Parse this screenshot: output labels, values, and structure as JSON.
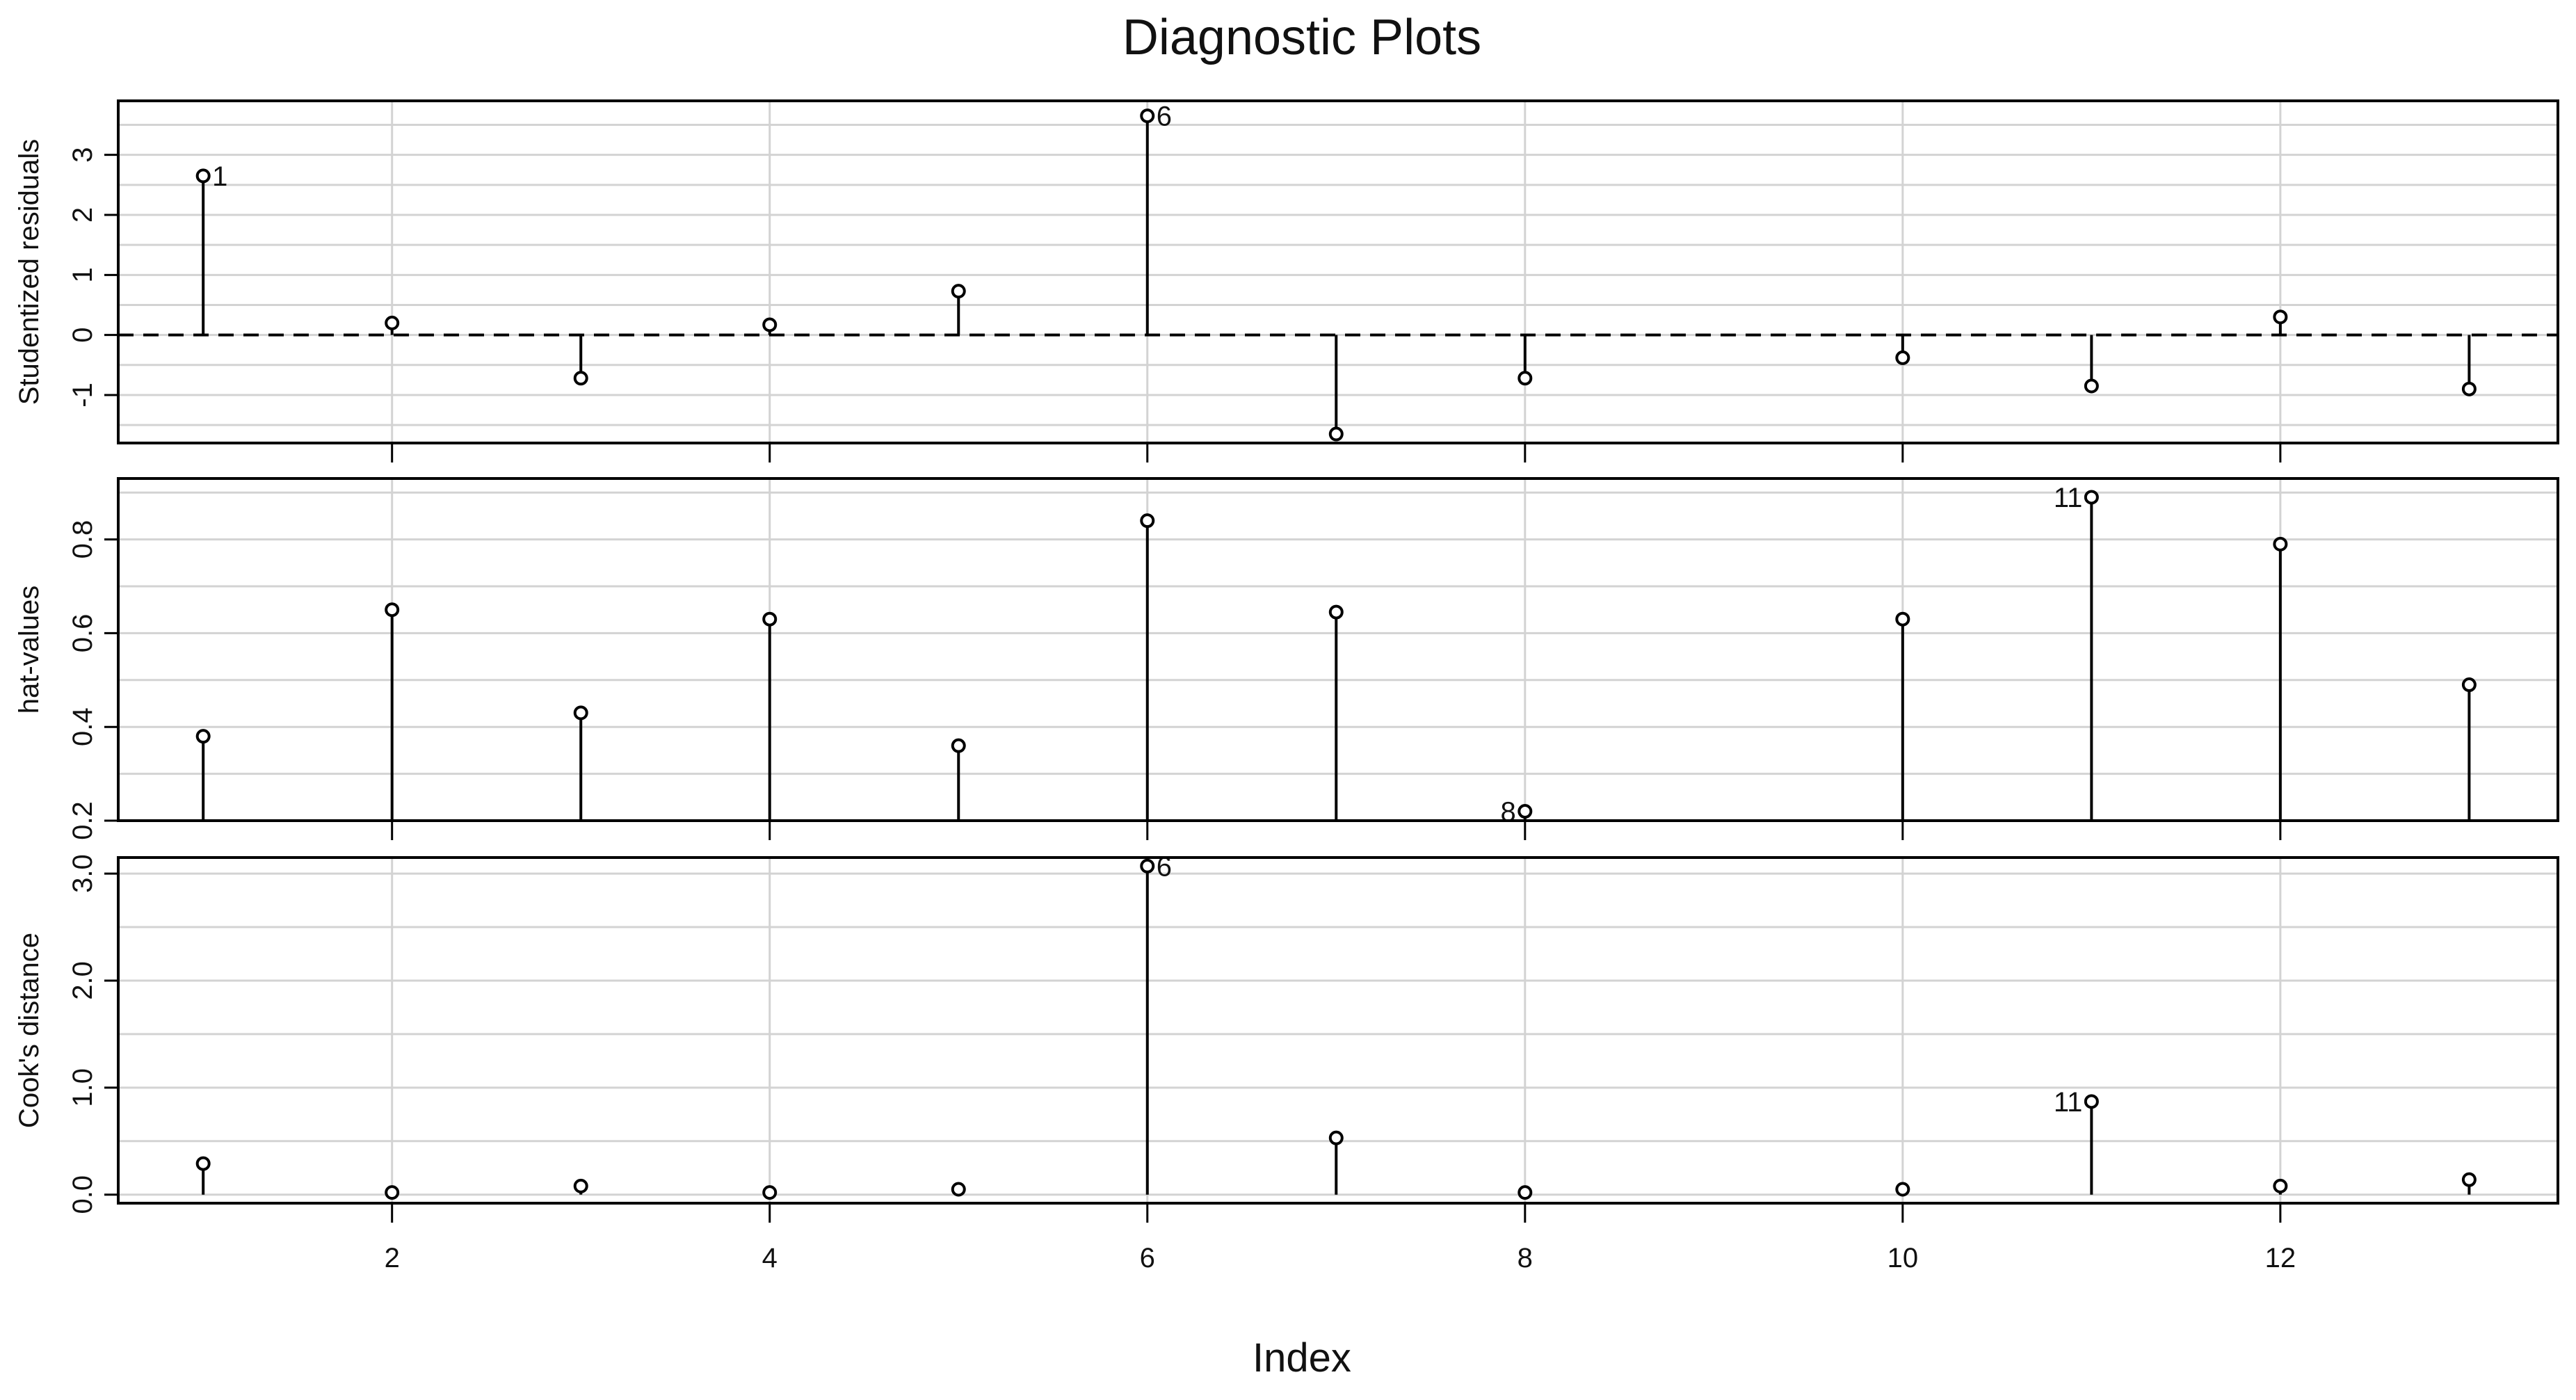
{
  "title": "Diagnostic Plots",
  "xlabel": "Index",
  "chart_data": [
    {
      "type": "scatter",
      "style": "lollipop",
      "ylabel": "Studentized residuals",
      "x": [
        1,
        2,
        3,
        4,
        5,
        6,
        7,
        8,
        10,
        11,
        12,
        13
      ],
      "values": [
        2.65,
        0.2,
        -0.72,
        0.17,
        0.73,
        3.65,
        -1.65,
        -0.72,
        -0.38,
        -0.85,
        0.3,
        -0.9
      ],
      "baseline": 0,
      "baseline_style": "dashed",
      "ylim": [
        -1.8,
        3.9
      ],
      "yticks": [
        -1,
        0,
        1,
        2,
        3
      ],
      "ytick_labels": [
        "-1",
        "0",
        "1",
        "2",
        "3"
      ],
      "point_labels": [
        {
          "x": 1,
          "text": "1",
          "side": "right"
        },
        {
          "x": 6,
          "text": "6",
          "side": "right"
        }
      ],
      "grid": true
    },
    {
      "type": "scatter",
      "style": "lollipop",
      "ylabel": "hat-values",
      "x": [
        1,
        2,
        3,
        4,
        5,
        6,
        7,
        8,
        10,
        11,
        12,
        13
      ],
      "values": [
        0.38,
        0.65,
        0.43,
        0.63,
        0.36,
        0.84,
        0.645,
        0.22,
        0.63,
        0.89,
        0.79,
        0.49
      ],
      "baseline": 0.2,
      "ylim": [
        0.2,
        0.93
      ],
      "yticks": [
        0.2,
        0.4,
        0.6,
        0.8
      ],
      "ytick_labels": [
        "0.2",
        "0.4",
        "0.6",
        "0.8"
      ],
      "point_labels": [
        {
          "x": 8,
          "text": "8",
          "side": "left"
        },
        {
          "x": 11,
          "text": "11",
          "side": "left"
        }
      ],
      "grid": true
    },
    {
      "type": "scatter",
      "style": "lollipop",
      "ylabel": "Cook's distance",
      "x": [
        1,
        2,
        3,
        4,
        5,
        6,
        7,
        8,
        10,
        11,
        12,
        13
      ],
      "values": [
        0.29,
        0.02,
        0.08,
        0.02,
        0.05,
        3.07,
        0.53,
        0.02,
        0.05,
        0.87,
        0.08,
        0.14
      ],
      "baseline": 0,
      "ylim": [
        -0.08,
        3.15
      ],
      "yticks": [
        0.0,
        1.0,
        2.0,
        3.0
      ],
      "ytick_labels": [
        "0.0",
        "1.0",
        "2.0",
        "3.0"
      ],
      "minor_grid_step": 0.5,
      "point_labels": [
        {
          "x": 6,
          "text": "6",
          "side": "right"
        },
        {
          "x": 11,
          "text": "11",
          "side": "left"
        }
      ],
      "grid": true
    }
  ],
  "xaxis": {
    "xlim": [
      0.55,
      13.47
    ],
    "ticks": [
      2,
      4,
      6,
      8,
      10,
      12
    ],
    "tick_labels": [
      "2",
      "4",
      "6",
      "8",
      "10",
      "12"
    ]
  }
}
